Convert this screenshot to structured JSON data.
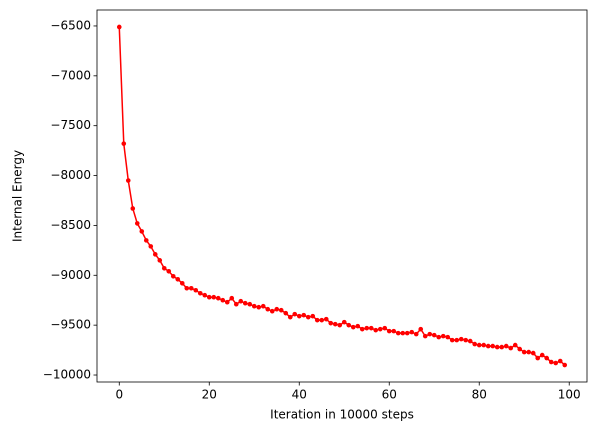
{
  "chart_data": {
    "type": "line",
    "xlabel": "Iteration in 10000 steps",
    "ylabel": "Internal Energy",
    "color": "#ff0000",
    "x": [
      0,
      1,
      2,
      3,
      4,
      5,
      6,
      7,
      8,
      9,
      10,
      11,
      12,
      13,
      14,
      15,
      16,
      17,
      18,
      19,
      20,
      21,
      22,
      23,
      24,
      25,
      26,
      27,
      28,
      29,
      30,
      31,
      32,
      33,
      34,
      35,
      36,
      37,
      38,
      39,
      40,
      41,
      42,
      43,
      44,
      45,
      46,
      47,
      48,
      49,
      50,
      51,
      52,
      53,
      54,
      55,
      56,
      57,
      58,
      59,
      60,
      61,
      62,
      63,
      64,
      65,
      66,
      67,
      68,
      69,
      70,
      71,
      72,
      73,
      74,
      75,
      76,
      77,
      78,
      79,
      80,
      81,
      82,
      83,
      84,
      85,
      86,
      87,
      88,
      89,
      90,
      91,
      92,
      93,
      94,
      95,
      96,
      97,
      98,
      99
    ],
    "values": [
      -6510,
      -7680,
      -8050,
      -8330,
      -8480,
      -8560,
      -8650,
      -8710,
      -8790,
      -8850,
      -8930,
      -8960,
      -9010,
      -9040,
      -9080,
      -9130,
      -9130,
      -9150,
      -9180,
      -9200,
      -9220,
      -9220,
      -9230,
      -9250,
      -9270,
      -9230,
      -9290,
      -9260,
      -9280,
      -9290,
      -9310,
      -9320,
      -9310,
      -9340,
      -9360,
      -9340,
      -9350,
      -9380,
      -9420,
      -9390,
      -9410,
      -9400,
      -9420,
      -9410,
      -9450,
      -9450,
      -9440,
      -9480,
      -9490,
      -9500,
      -9470,
      -9500,
      -9520,
      -9510,
      -9540,
      -9530,
      -9530,
      -9550,
      -9540,
      -9530,
      -9560,
      -9560,
      -9580,
      -9580,
      -9580,
      -9570,
      -9590,
      -9540,
      -9610,
      -9590,
      -9600,
      -9620,
      -9610,
      -9620,
      -9650,
      -9650,
      -9640,
      -9650,
      -9660,
      -9690,
      -9700,
      -9700,
      -9710,
      -9710,
      -9720,
      -9720,
      -9710,
      -9730,
      -9700,
      -9740,
      -9770,
      -9770,
      -9780,
      -9830,
      -9800,
      -9830,
      -9870,
      -9880,
      -9860,
      -9900
    ],
    "xlim": [
      -4.95,
      103.95
    ],
    "ylim": [
      -10070,
      -6340
    ],
    "xticks": [
      0,
      20,
      40,
      60,
      80,
      100
    ],
    "yticks": [
      {
        "value": -10000,
        "label": "−10000"
      },
      {
        "value": -9500,
        "label": "−9500"
      },
      {
        "value": -9000,
        "label": "−9000"
      },
      {
        "value": -8500,
        "label": "−8500"
      },
      {
        "value": -8000,
        "label": "−8000"
      },
      {
        "value": -7500,
        "label": "−7500"
      },
      {
        "value": -7000,
        "label": "−7000"
      },
      {
        "value": -6500,
        "label": "−6500"
      }
    ]
  }
}
